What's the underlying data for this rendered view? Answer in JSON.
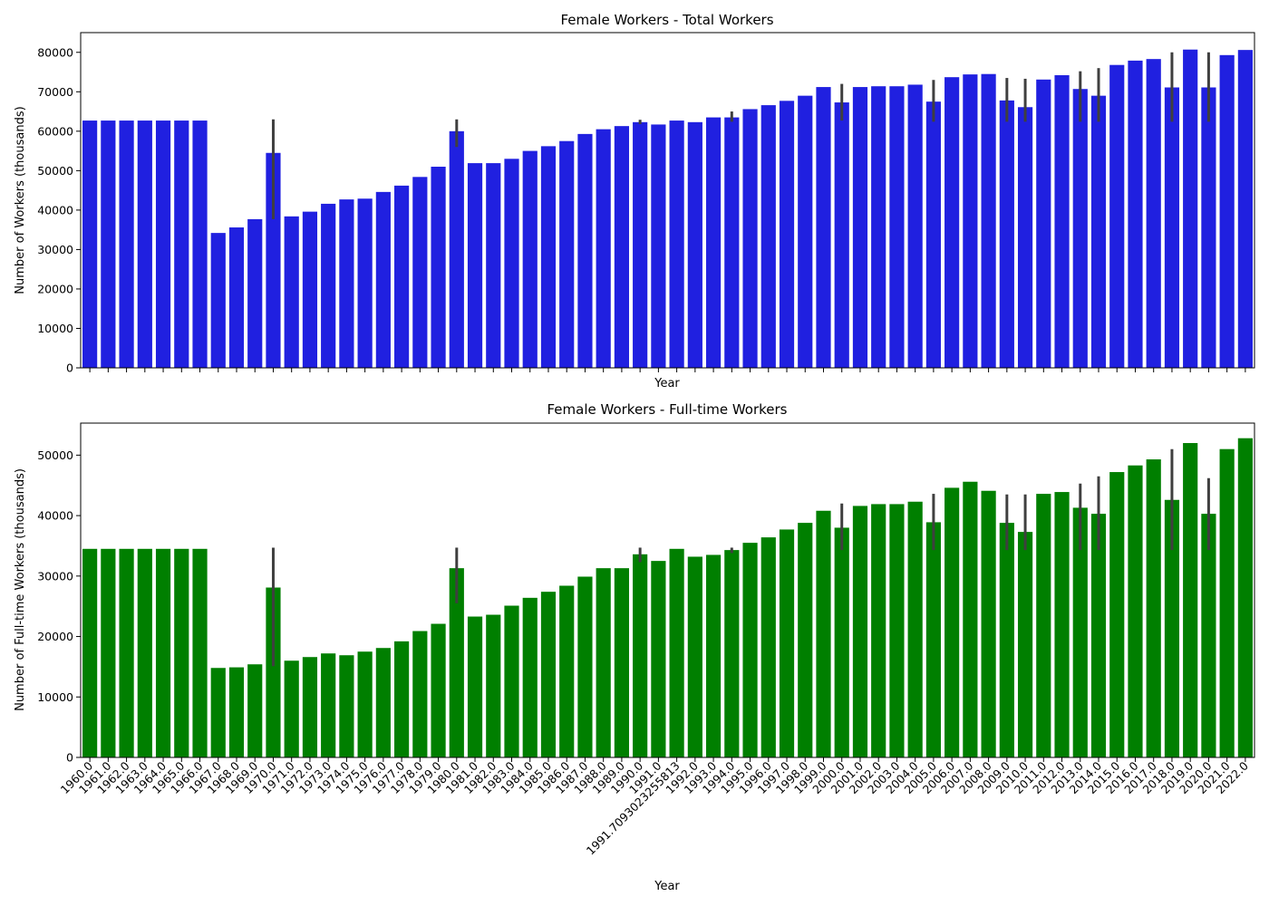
{
  "chart_data": {
    "type": "bar",
    "categories": [
      "1960.0",
      "1961.0",
      "1962.0",
      "1963.0",
      "1964.0",
      "1965.0",
      "1966.0",
      "1967.0",
      "1968.0",
      "1969.0",
      "1970.0",
      "1971.0",
      "1972.0",
      "1973.0",
      "1974.0",
      "1975.0",
      "1976.0",
      "1977.0",
      "1978.0",
      "1979.0",
      "1980.0",
      "1981.0",
      "1982.0",
      "1983.0",
      "1984.0",
      "1985.0",
      "1986.0",
      "1987.0",
      "1988.0",
      "1989.0",
      "1990.0",
      "1991.0",
      "1991.7093023255813",
      "1992.0",
      "1993.0",
      "1994.0",
      "1995.0",
      "1996.0",
      "1997.0",
      "1998.0",
      "1999.0",
      "2000.0",
      "2001.0",
      "2002.0",
      "2003.0",
      "2004.0",
      "2005.0",
      "2006.0",
      "2007.0",
      "2008.0",
      "2009.0",
      "2010.0",
      "2011.0",
      "2012.0",
      "2013.0",
      "2014.0",
      "2015.0",
      "2016.0",
      "2017.0",
      "2018.0",
      "2019.0",
      "2020.0",
      "2021.0",
      "2022.0"
    ],
    "xlabel": "Year",
    "panels": [
      {
        "title": "Female Workers - Total Workers",
        "ylabel": "Number of Workers (thousands)",
        "color": "#2020e0",
        "ylim": [
          0,
          85000
        ],
        "yticks": [
          0,
          10000,
          20000,
          30000,
          40000,
          50000,
          60000,
          70000,
          80000
        ],
        "show_xticklabels": false,
        "values": [
          62700,
          62700,
          62700,
          62700,
          62700,
          62700,
          62700,
          34200,
          35600,
          37700,
          54500,
          38400,
          39600,
          41600,
          42700,
          42900,
          44600,
          46200,
          48400,
          51000,
          60000,
          51900,
          51900,
          53000,
          55000,
          56200,
          57500,
          59300,
          60500,
          61300,
          62300,
          61700,
          62700,
          62300,
          63500,
          63500,
          65600,
          66600,
          67700,
          69000,
          71200,
          67300,
          71200,
          71400,
          71400,
          71800,
          67500,
          73700,
          74400,
          74500,
          67800,
          66100,
          73100,
          74200,
          70700,
          69000,
          76800,
          77900,
          78300,
          71100,
          80700,
          71100,
          79300,
          80600
        ],
        "errors": [
          null,
          null,
          null,
          null,
          null,
          null,
          null,
          null,
          null,
          null,
          [
            37700,
            63000
          ],
          null,
          null,
          null,
          null,
          null,
          null,
          null,
          null,
          null,
          [
            56000,
            63000
          ],
          null,
          null,
          null,
          null,
          null,
          null,
          null,
          null,
          null,
          [
            61800,
            62900
          ],
          null,
          null,
          null,
          null,
          [
            62400,
            65000
          ],
          null,
          null,
          null,
          null,
          null,
          [
            62700,
            72000
          ],
          null,
          null,
          null,
          null,
          [
            62400,
            73000
          ],
          null,
          null,
          null,
          [
            62400,
            73500
          ],
          [
            62400,
            73300
          ],
          null,
          null,
          [
            62400,
            75200
          ],
          [
            62400,
            76000
          ],
          null,
          null,
          null,
          [
            62400,
            80000
          ],
          null,
          [
            62400,
            80000
          ],
          null,
          null
        ]
      },
      {
        "title": "Female Workers - Full-time Workers",
        "ylabel": "Number of Full-time Workers (thousands)",
        "color": "#007f00",
        "ylim": [
          0,
          55300
        ],
        "yticks": [
          0,
          10000,
          20000,
          30000,
          40000,
          50000
        ],
        "show_xticklabels": true,
        "values": [
          34500,
          34500,
          34500,
          34500,
          34500,
          34500,
          34500,
          14800,
          14900,
          15400,
          28100,
          16000,
          16600,
          17200,
          16900,
          17500,
          18100,
          19200,
          20900,
          22100,
          31300,
          23300,
          23600,
          25100,
          26400,
          27400,
          28400,
          29900,
          31300,
          31300,
          33600,
          32500,
          34500,
          33200,
          33500,
          34300,
          35500,
          36400,
          37700,
          38800,
          40800,
          38000,
          41600,
          41900,
          41900,
          42300,
          38900,
          44600,
          45600,
          44100,
          38800,
          37300,
          43600,
          43900,
          41300,
          40300,
          47200,
          48300,
          49300,
          42600,
          52000,
          40300,
          51000,
          52800
        ],
        "errors": [
          null,
          null,
          null,
          null,
          null,
          null,
          null,
          null,
          null,
          null,
          [
            15100,
            34700
          ],
          null,
          null,
          null,
          null,
          null,
          null,
          null,
          null,
          null,
          [
            25500,
            34700
          ],
          null,
          null,
          null,
          null,
          null,
          null,
          null,
          null,
          null,
          [
            32300,
            34700
          ],
          null,
          null,
          null,
          null,
          [
            33800,
            34700
          ],
          null,
          null,
          null,
          null,
          null,
          [
            34300,
            42000
          ],
          null,
          null,
          null,
          null,
          [
            34300,
            43600
          ],
          null,
          null,
          null,
          [
            34300,
            43500
          ],
          [
            34300,
            43500
          ],
          null,
          null,
          [
            34300,
            45300
          ],
          [
            34300,
            46500
          ],
          null,
          null,
          null,
          [
            34300,
            51000
          ],
          null,
          [
            34300,
            46200
          ],
          null,
          null
        ]
      }
    ]
  }
}
